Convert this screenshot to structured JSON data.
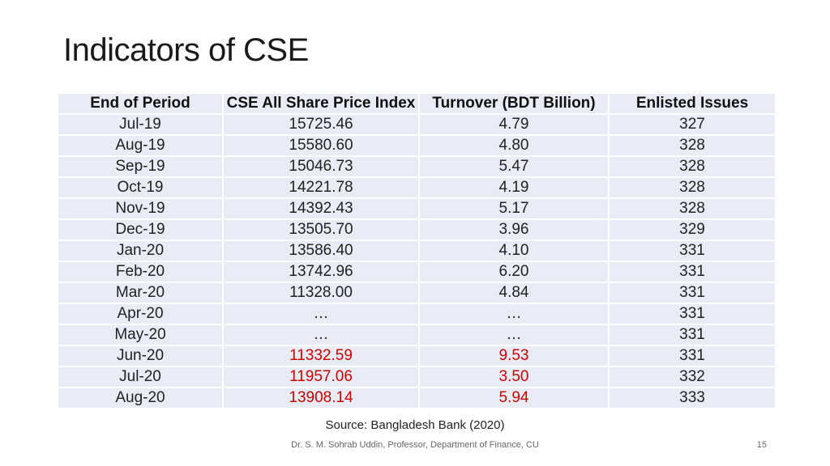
{
  "title": "Indicators of CSE",
  "table": {
    "headers": [
      "End of Period",
      "CSE All Share Price Index",
      "Turnover (BDT Billion)",
      "Enlisted Issues"
    ],
    "rows": [
      {
        "period": "Jul-19",
        "index": "15725.46",
        "turnover": "4.79",
        "issues": "327",
        "highlight": false
      },
      {
        "period": "Aug-19",
        "index": "15580.60",
        "turnover": "4.80",
        "issues": "328",
        "highlight": false
      },
      {
        "period": "Sep-19",
        "index": "15046.73",
        "turnover": "5.47",
        "issues": "328",
        "highlight": false
      },
      {
        "period": "Oct-19",
        "index": "14221.78",
        "turnover": "4.19",
        "issues": "328",
        "highlight": false
      },
      {
        "period": "Nov-19",
        "index": "14392.43",
        "turnover": "5.17",
        "issues": "328",
        "highlight": false
      },
      {
        "period": "Dec-19",
        "index": "13505.70",
        "turnover": "3.96",
        "issues": "329",
        "highlight": false
      },
      {
        "period": "Jan-20",
        "index": "13586.40",
        "turnover": "4.10",
        "issues": "331",
        "highlight": false
      },
      {
        "period": "Feb-20",
        "index": "13742.96",
        "turnover": "6.20",
        "issues": "331",
        "highlight": false
      },
      {
        "period": "Mar-20",
        "index": "11328.00",
        "turnover": "4.84",
        "issues": "331",
        "highlight": false
      },
      {
        "period": "Apr-20",
        "index": "…",
        "turnover": "…",
        "issues": "331",
        "highlight": false
      },
      {
        "period": "May-20",
        "index": "…",
        "turnover": "…",
        "issues": "331",
        "highlight": false
      },
      {
        "period": "Jun-20",
        "index": "11332.59",
        "turnover": "9.53",
        "issues": "331",
        "highlight": true
      },
      {
        "period": "Jul-20",
        "index": "11957.06",
        "turnover": "3.50",
        "issues": "332",
        "highlight": true
      },
      {
        "period": "Aug-20",
        "index": "13908.14",
        "turnover": "5.94",
        "issues": "333",
        "highlight": true
      }
    ]
  },
  "source": "Source: Bangladesh Bank (2020)",
  "footer": "Dr. S. M. Sohrab Uddin, Professor, Department of Finance, CU",
  "page_number": "15",
  "colors": {
    "cell_bg": "#e9ecf5",
    "highlight": "#cc0000"
  }
}
